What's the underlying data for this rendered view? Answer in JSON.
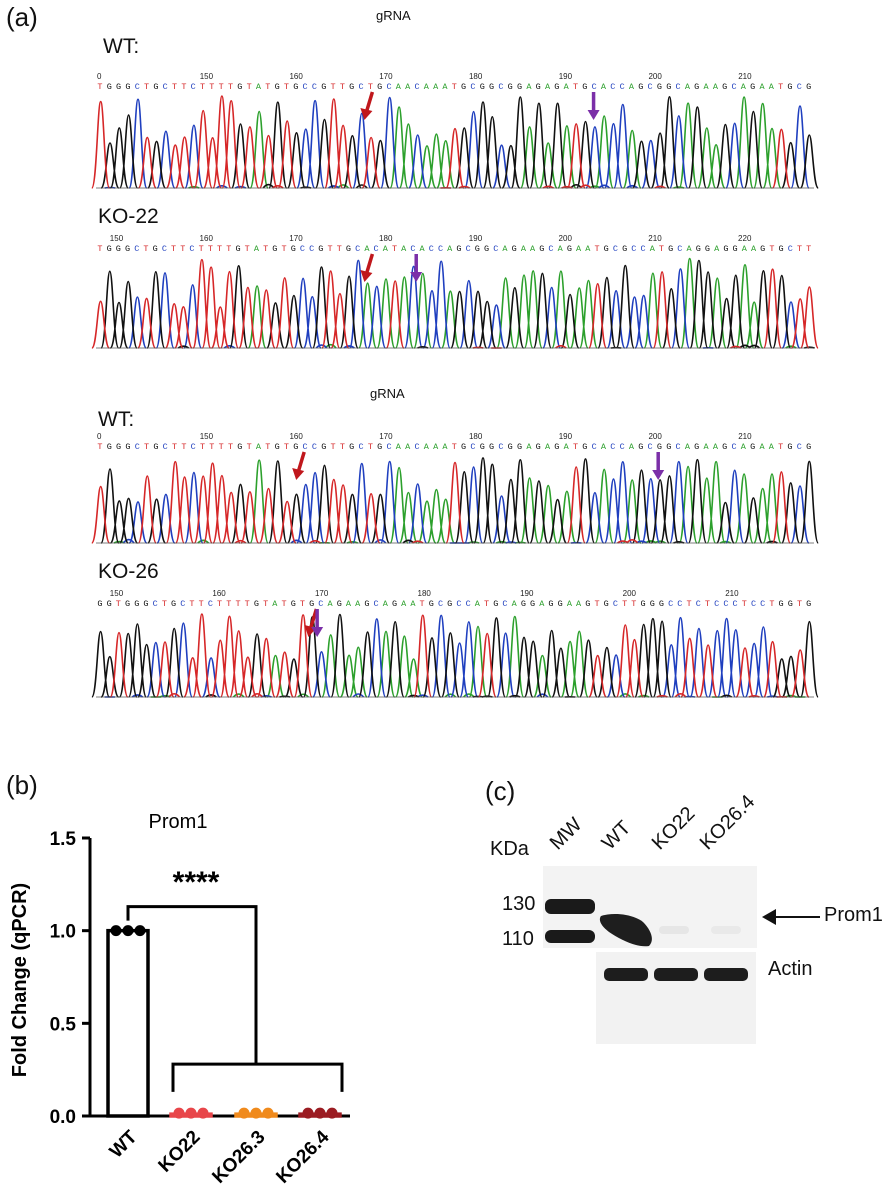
{
  "panel_a": {
    "label": "(a)",
    "blocks": [
      {
        "grna_label": "gRNA",
        "traces": [
          {
            "name": "WT:",
            "ticks": [
              "0",
              "150",
              "160",
              "170",
              "180",
              "190",
              "200",
              "210"
            ],
            "sequence": "TGGGCTGCTTCTTTTGTATGTGCCGTTGCTGCAACAAATGCGGCGGAGAGATGCACCAGCGGCAGAAGCAGAATGCG"
          },
          {
            "name": "KO-22",
            "ticks": [
              "150",
              "160",
              "170",
              "180",
              "190",
              "200",
              "210",
              "220"
            ],
            "sequence": "TGGGCTGCTTCTTTTGTATGTGCCGTTGCACATACACCAGCGGCAGAAGCAGAATGCGCCATGCAGGAGGAAGTGCTT"
          }
        ]
      },
      {
        "grna_label": "gRNA",
        "traces": [
          {
            "name": "WT:",
            "ticks": [
              "0",
              "150",
              "160",
              "170",
              "180",
              "190",
              "200",
              "210"
            ],
            "sequence": "TGGGCTGCTTCTTTTGTATGTGCCGTTGCTGCAACAAATGCGGCGGAGAGATGCACCAGCGGCAGAAGCAGAATGCG"
          },
          {
            "name": "KO-26",
            "ticks": [
              "150",
              "160",
              "170",
              "180",
              "190",
              "200",
              "210"
            ],
            "sequence": "GGTGGGCTGCTTCTTTTGTATGTGCAGAAGCAGAATGCGCCATGCAGGAGGAAGTGCTTGGGCCTCTCCCTCCTGGTG"
          }
        ]
      }
    ]
  },
  "panel_b": {
    "label": "(b)",
    "title": "Prom1",
    "significance": "****",
    "chart_data": {
      "type": "bar",
      "title": "Prom1",
      "xlabel": "",
      "ylabel": "Fold Change (qPCR)",
      "ylim": [
        0,
        1.5
      ],
      "yticks": [
        "0.0",
        "0.5",
        "1.0",
        "1.5"
      ],
      "categories": [
        "WT",
        "KO22",
        "KO26.3",
        "KO26.4"
      ],
      "values": [
        1.0,
        0.01,
        0.01,
        0.01
      ],
      "points": [
        [
          1.0,
          1.0,
          1.0
        ],
        [
          0.01,
          0.01,
          0.01
        ],
        [
          0.01,
          0.01,
          0.01
        ],
        [
          0.01,
          0.01,
          0.01
        ]
      ],
      "colors": [
        "#000000",
        "#e8464a",
        "#f08a1c",
        "#9b1c22"
      ]
    }
  },
  "panel_c": {
    "label": "(c)",
    "kda_label": "KDa",
    "lanes": [
      "MW",
      "WT",
      "KO22",
      "KO26.4"
    ],
    "markers": [
      "130",
      "110"
    ],
    "target_label": "Prom1",
    "loading_label": "Actin"
  },
  "colors": {
    "A": "#2ca02c",
    "C": "#1f3fbf",
    "G": "#111111",
    "T": "#d62728",
    "red_arrow": "#c0171c",
    "purple_arrow": "#7b2fa8"
  }
}
